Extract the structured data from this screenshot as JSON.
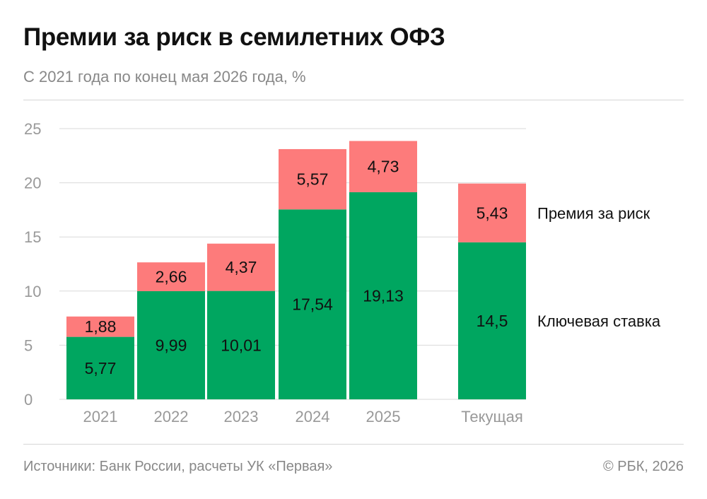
{
  "header": {
    "title": "Премии за риск в семилетних ОФЗ",
    "subtitle": "С 2021 года по конец мая 2026 года, %"
  },
  "footer": {
    "source": "Источники: Банк России, расчеты УК «Первая»",
    "copyright": "© РБК, 2026"
  },
  "colors": {
    "key_rate": "#00a660",
    "premium": "#fd7b7b",
    "gridline": "#d9d9d9",
    "axis_text": "#999999"
  },
  "chart_data": {
    "type": "bar",
    "stacked": true,
    "categories": [
      "2021",
      "2022",
      "2023",
      "2024",
      "2025",
      "Текущая"
    ],
    "series": [
      {
        "name": "Ключевая ставка",
        "values": [
          5.77,
          9.99,
          10.01,
          17.54,
          19.13,
          14.5
        ],
        "labels": [
          "5,77",
          "9,99",
          "10,01",
          "17,54",
          "19,13",
          "14,5"
        ]
      },
      {
        "name": "Премия за риск",
        "values": [
          1.88,
          2.66,
          4.37,
          5.57,
          4.73,
          5.43
        ],
        "labels": [
          "1,88",
          "2,66",
          "4,37",
          "5,57",
          "4,73",
          "5,43"
        ]
      }
    ],
    "ylim": [
      0,
      25
    ],
    "yticks": [
      0,
      5,
      10,
      15,
      20,
      25
    ],
    "grid": true,
    "legend_placement": "right, next to last bar"
  }
}
